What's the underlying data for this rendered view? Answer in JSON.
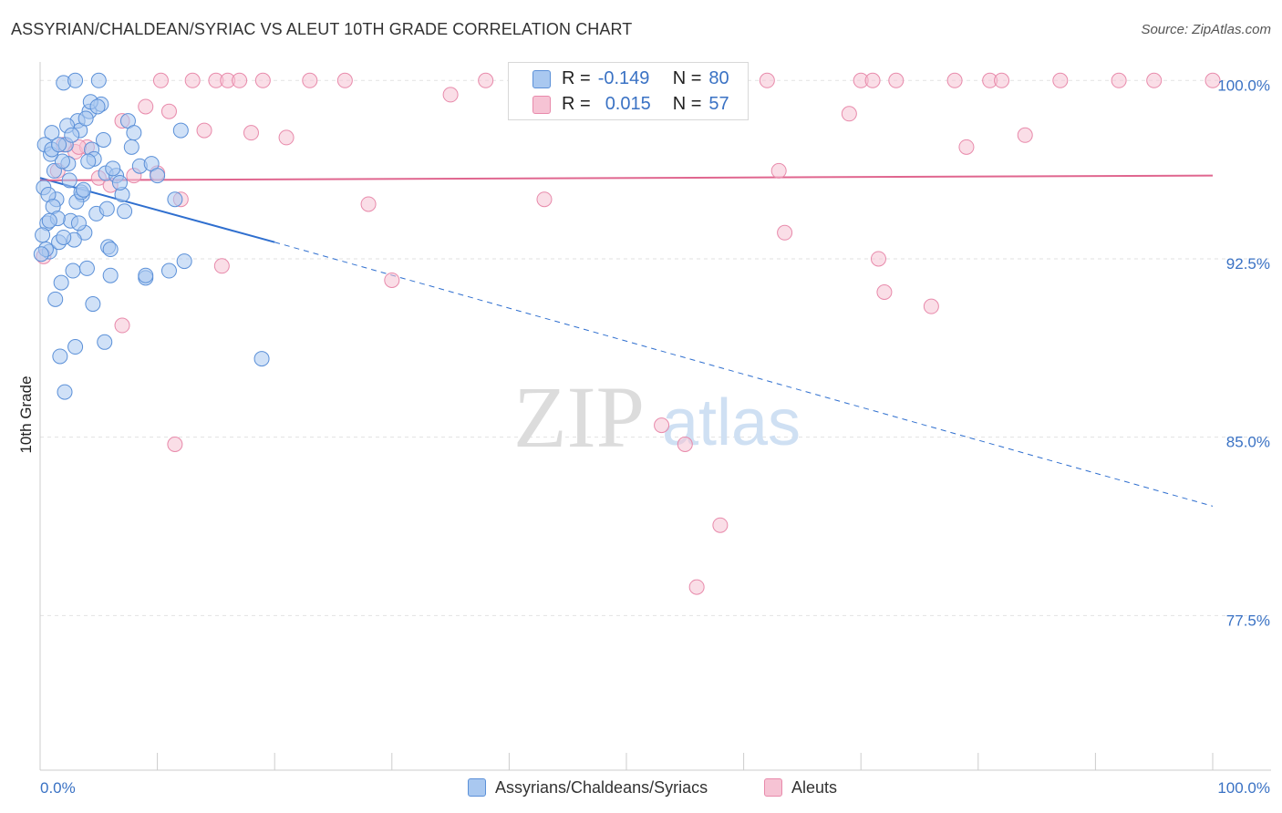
{
  "header": {
    "title": "ASSYRIAN/CHALDEAN/SYRIAC VS ALEUT 10TH GRADE CORRELATION CHART",
    "source": "Source: ZipAtlas.com"
  },
  "legend_top": {
    "rows": [
      {
        "r_label": "R =",
        "r_value": "-0.149",
        "n_label": "N =",
        "n_value": "80"
      },
      {
        "r_label": "R =",
        "r_value": "0.015",
        "n_label": "N =",
        "n_value": "57"
      }
    ]
  },
  "watermark": {
    "zip": "ZIP",
    "atlas": "atlas"
  },
  "colors": {
    "blue_fill": "#a9c8f0",
    "blue_stroke": "#5b90d8",
    "blue_line": "#2f6fcf",
    "pink_fill": "#f6c3d4",
    "pink_stroke": "#e88aab",
    "pink_line": "#e0668f",
    "axis_text": "#3a72c4",
    "grid": "#e2e2e2"
  },
  "chart_data": {
    "type": "scatter",
    "title": "ASSYRIAN/CHALDEAN/SYRIAC VS ALEUT 10TH GRADE CORRELATION CHART",
    "xlabel": "",
    "ylabel": "10th Grade",
    "xlim": [
      0,
      100
    ],
    "ylim": [
      71.0,
      100.7
    ],
    "x_tick_labels": [
      "0.0%",
      "100.0%"
    ],
    "y_ticks": [
      100.0,
      92.5,
      85.0,
      77.5
    ],
    "y_tick_labels": [
      "100.0%",
      "92.5%",
      "85.0%",
      "77.5%"
    ],
    "grid": true,
    "legend_position": "bottom",
    "series": [
      {
        "name": "Assyrians/Chaldeans/Syriacs",
        "r": -0.149,
        "n": 80,
        "trend": {
          "x": [
            0,
            20,
            100
          ],
          "y": [
            95.9,
            93.2,
            82.1
          ],
          "solid_until_x": 20
        },
        "points": [
          [
            0.3,
            95.5
          ],
          [
            0.6,
            94.0
          ],
          [
            0.8,
            92.8
          ],
          [
            1.0,
            97.8
          ],
          [
            1.2,
            96.2
          ],
          [
            1.4,
            95.0
          ],
          [
            1.6,
            93.2
          ],
          [
            1.8,
            91.5
          ],
          [
            2.0,
            99.9
          ],
          [
            2.2,
            97.3
          ],
          [
            2.4,
            96.5
          ],
          [
            2.6,
            94.1
          ],
          [
            2.8,
            92.0
          ],
          [
            3.0,
            100.0
          ],
          [
            3.2,
            98.3
          ],
          [
            3.4,
            97.9
          ],
          [
            3.6,
            95.2
          ],
          [
            3.8,
            93.6
          ],
          [
            4.0,
            92.1
          ],
          [
            4.2,
            98.7
          ],
          [
            4.4,
            97.1
          ],
          [
            4.6,
            96.7
          ],
          [
            4.8,
            94.4
          ],
          [
            5.0,
            100.0
          ],
          [
            5.2,
            99.0
          ],
          [
            5.4,
            97.5
          ],
          [
            5.6,
            96.1
          ],
          [
            5.8,
            93.0
          ],
          [
            6.0,
            91.8
          ],
          [
            0.4,
            97.3
          ],
          [
            0.7,
            95.2
          ],
          [
            1.1,
            94.7
          ],
          [
            1.5,
            94.2
          ],
          [
            1.9,
            96.6
          ],
          [
            2.3,
            98.1
          ],
          [
            2.7,
            97.7
          ],
          [
            3.1,
            94.9
          ],
          [
            3.5,
            95.3
          ],
          [
            3.9,
            98.4
          ],
          [
            4.3,
            99.1
          ],
          [
            6.5,
            96.0
          ],
          [
            7.0,
            95.2
          ],
          [
            7.2,
            94.5
          ],
          [
            7.5,
            98.3
          ],
          [
            8.0,
            97.8
          ],
          [
            8.5,
            96.4
          ],
          [
            9.0,
            91.7
          ],
          [
            0.5,
            92.9
          ],
          [
            1.3,
            90.8
          ],
          [
            1.7,
            88.4
          ],
          [
            2.1,
            86.9
          ],
          [
            3.0,
            88.8
          ],
          [
            4.5,
            90.6
          ],
          [
            5.5,
            89.0
          ],
          [
            6.8,
            95.7
          ],
          [
            7.8,
            97.2
          ],
          [
            9.0,
            91.8
          ],
          [
            9.5,
            96.5
          ],
          [
            10.0,
            96.0
          ],
          [
            11.0,
            92.0
          ],
          [
            11.5,
            95.0
          ],
          [
            12.0,
            97.9
          ],
          [
            12.3,
            92.4
          ],
          [
            18.9,
            88.3
          ],
          [
            0.2,
            93.5
          ],
          [
            0.9,
            96.9
          ],
          [
            2.5,
            95.8
          ],
          [
            3.3,
            94.0
          ],
          [
            4.1,
            96.6
          ],
          [
            5.7,
            94.6
          ],
          [
            6.2,
            96.3
          ],
          [
            0.1,
            92.7
          ],
          [
            1.0,
            97.1
          ],
          [
            2.9,
            93.3
          ],
          [
            1.6,
            97.3
          ],
          [
            3.7,
            95.4
          ],
          [
            4.9,
            98.9
          ],
          [
            0.8,
            94.1
          ],
          [
            2.0,
            93.4
          ],
          [
            6.0,
            92.9
          ]
        ]
      },
      {
        "name": "Aleuts",
        "r": 0.015,
        "n": 57,
        "trend": {
          "x": [
            0,
            100
          ],
          "y": [
            95.8,
            96.0
          ]
        },
        "points": [
          [
            0.3,
            92.6
          ],
          [
            1.5,
            96.2
          ],
          [
            2.0,
            97.3
          ],
          [
            3.0,
            97.0
          ],
          [
            4.0,
            97.2
          ],
          [
            5.0,
            95.9
          ],
          [
            6.0,
            95.6
          ],
          [
            7.0,
            98.3
          ],
          [
            8.0,
            96.0
          ],
          [
            9.0,
            98.9
          ],
          [
            10.0,
            96.1
          ],
          [
            11.0,
            98.7
          ],
          [
            12.0,
            95.0
          ],
          [
            13.0,
            100.0
          ],
          [
            14.0,
            97.9
          ],
          [
            15.0,
            100.0
          ],
          [
            16.0,
            100.0
          ],
          [
            17.0,
            100.0
          ],
          [
            18.0,
            97.8
          ],
          [
            19.0,
            100.0
          ],
          [
            21.0,
            97.6
          ],
          [
            23.0,
            100.0
          ],
          [
            26.0,
            100.0
          ],
          [
            28.0,
            94.8
          ],
          [
            30.0,
            91.6
          ],
          [
            35.0,
            99.4
          ],
          [
            38.0,
            100.0
          ],
          [
            43.0,
            95.0
          ],
          [
            47.0,
            100.0
          ],
          [
            53.0,
            85.5
          ],
          [
            55.0,
            84.7
          ],
          [
            58.0,
            81.3
          ],
          [
            56.0,
            78.7
          ],
          [
            62.0,
            100.0
          ],
          [
            63.0,
            96.2
          ],
          [
            63.5,
            93.6
          ],
          [
            69.0,
            98.6
          ],
          [
            70.0,
            100.0
          ],
          [
            71.0,
            100.0
          ],
          [
            71.5,
            92.5
          ],
          [
            72.0,
            91.1
          ],
          [
            73.0,
            100.0
          ],
          [
            76.0,
            90.5
          ],
          [
            78.0,
            100.0
          ],
          [
            79.0,
            97.2
          ],
          [
            81.0,
            100.0
          ],
          [
            82.0,
            100.0
          ],
          [
            84.0,
            97.7
          ],
          [
            87.0,
            100.0
          ],
          [
            92.0,
            100.0
          ],
          [
            95.0,
            100.0
          ],
          [
            100.0,
            100.0
          ],
          [
            11.5,
            84.7
          ],
          [
            7.0,
            89.7
          ],
          [
            15.5,
            92.2
          ],
          [
            3.3,
            97.2
          ],
          [
            10.3,
            100.0
          ]
        ]
      }
    ]
  },
  "bottom_legend": {
    "items": [
      {
        "label": "Assyrians/Chaldeans/Syriacs"
      },
      {
        "label": "Aleuts"
      }
    ]
  }
}
